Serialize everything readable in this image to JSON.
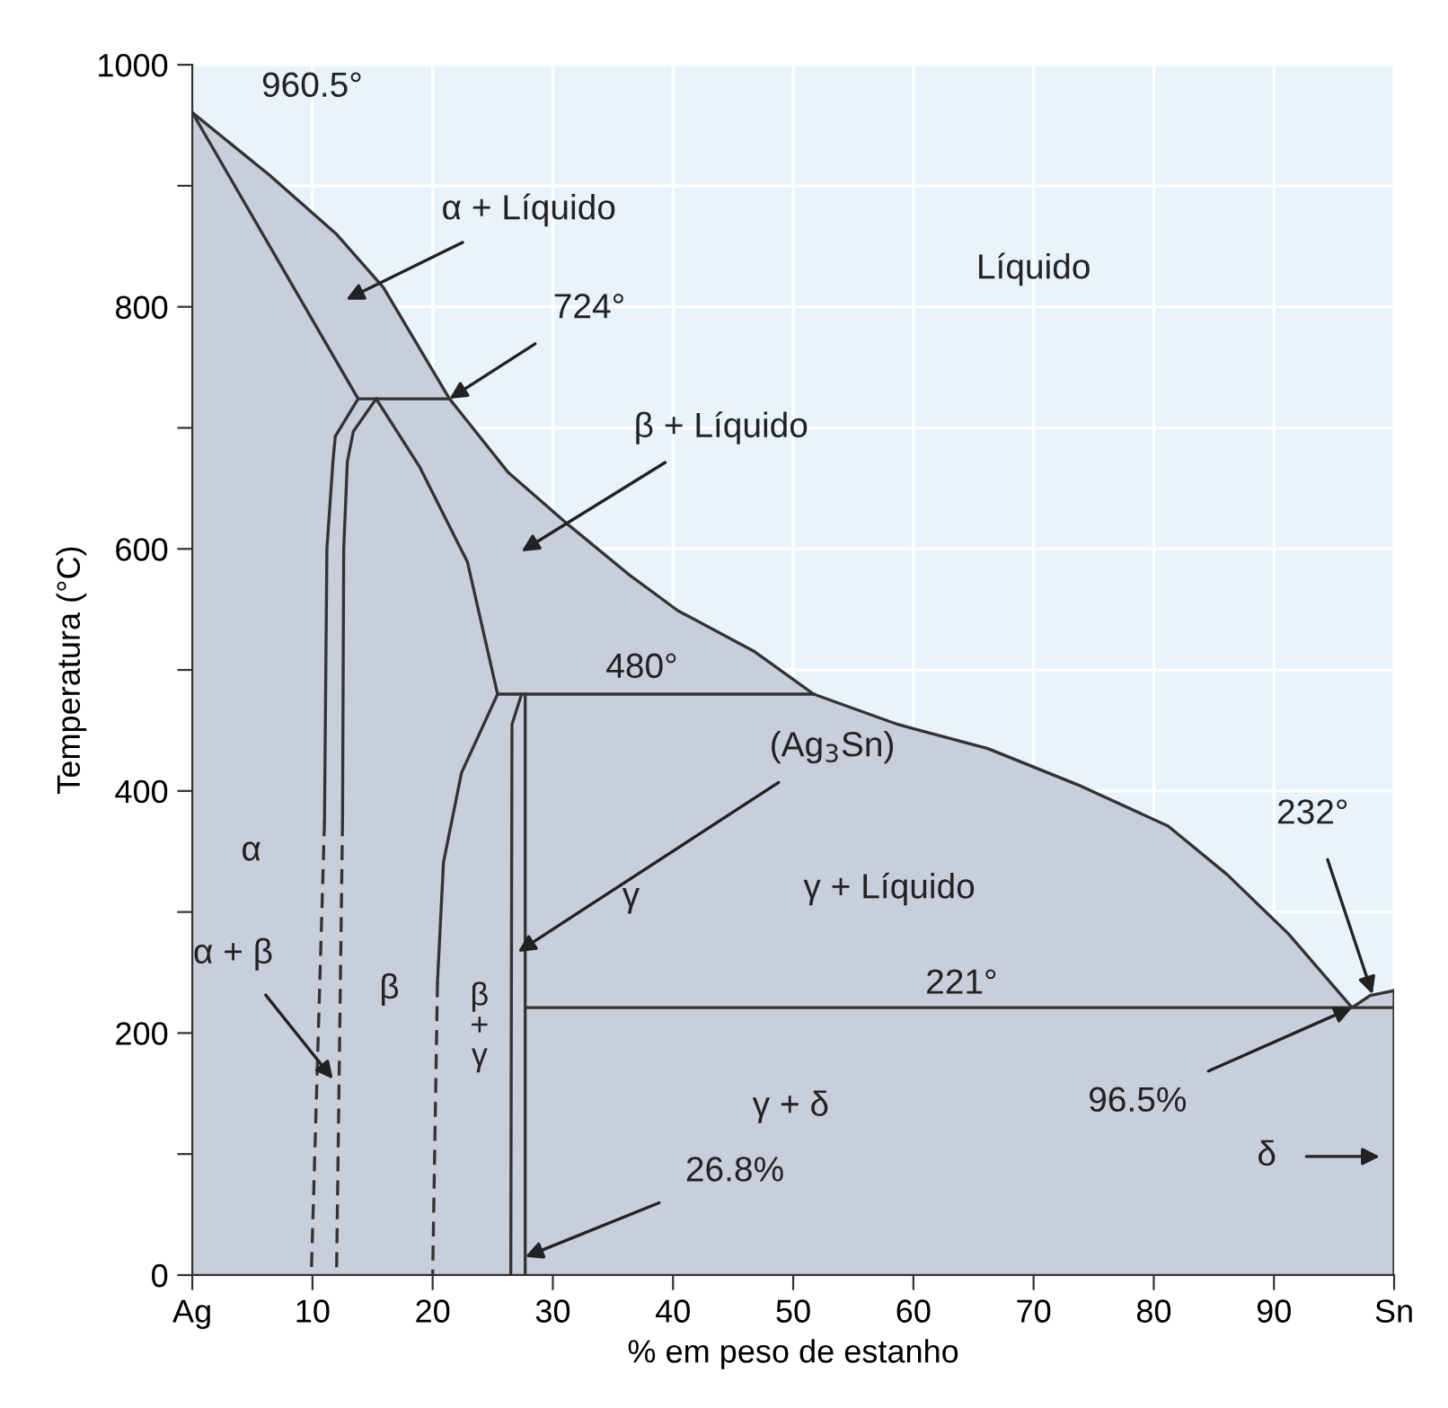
{
  "chart_data": {
    "type": "line",
    "xlabel": "% em peso de estanho",
    "ylabel": "Temperatura (°C)",
    "xlim": [
      0,
      100
    ],
    "ylim": [
      0,
      1000
    ],
    "xticks": [
      {
        "value": 0,
        "label": "Ag"
      },
      10,
      20,
      30,
      40,
      50,
      60,
      70,
      80,
      90,
      {
        "value": 100,
        "label": "Sn"
      }
    ],
    "yticks": [
      0,
      {
        "value": 100,
        "label": null
      },
      200,
      {
        "value": 300,
        "label": null
      },
      400,
      {
        "value": 500,
        "label": null
      },
      600,
      {
        "value": 700,
        "label": null
      },
      800,
      {
        "value": 900,
        "label": null
      },
      1000
    ],
    "grid": true,
    "marker": "none",
    "series": [
      {
        "type": "area",
        "color": "#c8cfdb",
        "x": [
          0,
          6.4,
          12,
          15.9,
          21.4,
          26.3,
          31.4,
          36.3,
          40.4,
          46.8,
          51.7,
          58.7,
          66.2,
          73.7,
          81.2,
          86.1,
          91.2,
          96.5,
          98,
          100
        ],
        "values": [
          960.5,
          909,
          860,
          816,
          724,
          663,
          619,
          579,
          549,
          515,
          480,
          455,
          435,
          405,
          371,
          331,
          282,
          221,
          231,
          235
        ]
      },
      {
        "color": "#333333",
        "line_style": "solid",
        "x": [
          0,
          13.8
        ],
        "values": [
          960.5,
          724
        ]
      },
      {
        "color": "#333333",
        "line_style": "solid",
        "x": [
          13.8,
          21.4
        ],
        "values": [
          724,
          724
        ]
      },
      {
        "color": "#333333",
        "line_style": "solid",
        "x": [
          13.8,
          11.9,
          11.7,
          11.2,
          11.0
        ],
        "values": [
          724,
          693,
          672,
          600,
          375
        ]
      },
      {
        "color": "#333333",
        "line_style": "dashed",
        "x": [
          11.0,
          9.9
        ],
        "values": [
          375,
          0
        ]
      },
      {
        "color": "#333333",
        "line_style": "solid",
        "x": [
          15.3,
          13.4,
          12.9,
          12.6,
          12.5
        ],
        "values": [
          724,
          697,
          672,
          600,
          375
        ]
      },
      {
        "color": "#333333",
        "line_style": "dashed",
        "x": [
          12.5,
          12.0
        ],
        "values": [
          375,
          0
        ]
      },
      {
        "color": "#333333",
        "line_style": "solid",
        "x": [
          15.3,
          18.9,
          22.9,
          25.4
        ],
        "values": [
          724,
          668,
          589,
          480
        ]
      },
      {
        "color": "#333333",
        "line_style": "solid",
        "x": [
          25.4,
          51.7
        ],
        "values": [
          480,
          480
        ]
      },
      {
        "color": "#333333",
        "line_style": "solid",
        "x": [
          25.4,
          22.4,
          20.9,
          20.4
        ],
        "values": [
          480,
          415,
          341,
          242
        ]
      },
      {
        "color": "#333333",
        "line_style": "dashed",
        "x": [
          20.4,
          20.0
        ],
        "values": [
          242,
          0
        ]
      },
      {
        "color": "#333333",
        "line_style": "solid",
        "x": [
          27.4,
          26.6,
          26.5
        ],
        "values": [
          480,
          455,
          0
        ]
      },
      {
        "color": "#333333",
        "line_style": "solid",
        "x": [
          27.7,
          27.7
        ],
        "values": [
          480,
          0
        ]
      },
      {
        "color": "#333333",
        "line_style": "solid",
        "x": [
          27.7,
          100
        ],
        "values": [
          221,
          221
        ]
      },
      {
        "color": "#333333",
        "line_style": "solid",
        "x": [
          100,
          100
        ],
        "values": [
          0,
          235
        ]
      }
    ],
    "annotations": [
      {
        "text": "960.5°",
        "x": 0,
        "y": 960.5
      },
      "α + Líquido",
      {
        "text": "724°",
        "x": 21.4,
        "y": 724
      },
      "β + Líquido",
      "Líquido",
      "480°",
      {
        "text": "(Ag$_{3}$Sn)",
        "x": 27.1,
        "y": 267
      },
      "α",
      "γ",
      "γ + Líquido",
      {
        "text": "232°",
        "x": 98.2,
        "y": 232
      },
      "221°",
      {
        "text": "α + β",
        "x": 11.7,
        "y": 162
      },
      "β",
      "β\n+\nγ",
      {
        "text": "96.5%",
        "x": 96.5,
        "y": 221
      },
      "γ + δ",
      "δ",
      {
        "text": "26.8%",
        "x": 27.7,
        "y": 15
      }
    ]
  }
}
